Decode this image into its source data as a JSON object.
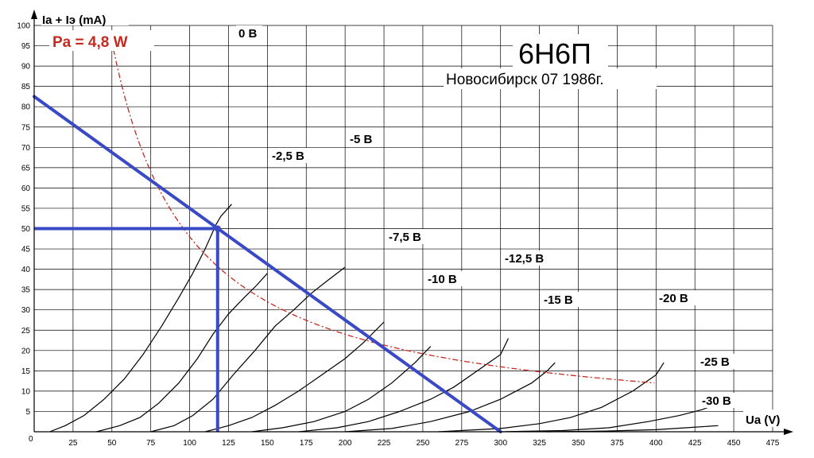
{
  "chart_data": {
    "type": "line",
    "title": "6Н6П",
    "subtitle": "Новосибирск 07 1986г.",
    "xlabel": "Ua (V)",
    "ylabel": "Ia + Iэ (mA)",
    "xlim": [
      0,
      475
    ],
    "ylim": [
      0,
      100
    ],
    "x_ticks": [
      25,
      50,
      75,
      100,
      125,
      150,
      175,
      200,
      225,
      250,
      275,
      300,
      325,
      350,
      375,
      400,
      425,
      450,
      475
    ],
    "y_ticks": [
      5,
      10,
      15,
      20,
      25,
      30,
      35,
      40,
      45,
      50,
      55,
      60,
      65,
      70,
      75,
      80,
      85,
      90,
      95,
      100
    ],
    "origin_label": "0",
    "grid": true,
    "series": [
      {
        "name": "0 В",
        "color": "#000000",
        "points": [
          [
            10,
            0
          ],
          [
            20,
            1.5
          ],
          [
            32,
            4
          ],
          [
            45,
            8
          ],
          [
            58,
            13
          ],
          [
            70,
            19
          ],
          [
            82,
            26
          ],
          [
            93,
            33
          ],
          [
            102,
            39
          ],
          [
            110,
            45
          ],
          [
            117,
            51
          ],
          [
            120,
            53
          ],
          [
            127,
            56
          ]
        ]
      },
      {
        "name": "-2,5 В",
        "color": "#000000",
        "points": [
          [
            40,
            0
          ],
          [
            55,
            1.5
          ],
          [
            68,
            3.5
          ],
          [
            80,
            7
          ],
          [
            93,
            12
          ],
          [
            105,
            18
          ],
          [
            115,
            24
          ],
          [
            125,
            29
          ],
          [
            135,
            33
          ],
          [
            143,
            36
          ],
          [
            150,
            39
          ]
        ]
      },
      {
        "name": "-5 В",
        "color": "#000000",
        "points": [
          [
            75,
            0
          ],
          [
            90,
            1.5
          ],
          [
            102,
            4
          ],
          [
            115,
            8
          ],
          [
            128,
            14
          ],
          [
            142,
            20
          ],
          [
            155,
            26
          ],
          [
            167,
            30
          ],
          [
            178,
            34
          ],
          [
            188,
            37
          ],
          [
            200,
            40.5
          ]
        ]
      },
      {
        "name": "-7,5 В",
        "color": "#000000",
        "points": [
          [
            110,
            0
          ],
          [
            125,
            1.5
          ],
          [
            140,
            3.5
          ],
          [
            155,
            6.5
          ],
          [
            170,
            10
          ],
          [
            185,
            14
          ],
          [
            200,
            18
          ],
          [
            212,
            22
          ],
          [
            225,
            27
          ]
        ]
      },
      {
        "name": "-10 В",
        "color": "#000000",
        "points": [
          [
            140,
            0
          ],
          [
            160,
            1
          ],
          [
            180,
            2.5
          ],
          [
            200,
            5
          ],
          [
            215,
            8
          ],
          [
            230,
            12
          ],
          [
            245,
            17
          ],
          [
            255,
            21
          ]
        ]
      },
      {
        "name": "-12,5 В",
        "color": "#000000",
        "points": [
          [
            170,
            0
          ],
          [
            195,
            1
          ],
          [
            215,
            2.5
          ],
          [
            235,
            5
          ],
          [
            255,
            8
          ],
          [
            270,
            11
          ],
          [
            285,
            15
          ],
          [
            300,
            19
          ],
          [
            305,
            23
          ]
        ]
      },
      {
        "name": "-15 В",
        "color": "#000000",
        "points": [
          [
            200,
            0
          ],
          [
            230,
            0.8
          ],
          [
            255,
            2.5
          ],
          [
            280,
            5
          ],
          [
            300,
            8
          ],
          [
            320,
            12
          ],
          [
            330,
            15
          ],
          [
            335,
            17
          ]
        ]
      },
      {
        "name": "-20 В",
        "color": "#000000",
        "points": [
          [
            260,
            0
          ],
          [
            300,
            0.8
          ],
          [
            325,
            2
          ],
          [
            345,
            3.5
          ],
          [
            365,
            6
          ],
          [
            385,
            10
          ],
          [
            400,
            14
          ],
          [
            405,
            17
          ]
        ]
      },
      {
        "name": "-25 В",
        "color": "#000000",
        "points": [
          [
            300,
            0
          ],
          [
            340,
            0.3
          ],
          [
            370,
            1
          ],
          [
            395,
            2.5
          ],
          [
            415,
            4
          ],
          [
            430,
            5.5
          ],
          [
            440,
            7
          ]
        ]
      },
      {
        "name": "-30 В",
        "color": "#000000",
        "points": [
          [
            330,
            0
          ],
          [
            370,
            0.2
          ],
          [
            400,
            0.5
          ],
          [
            420,
            1
          ],
          [
            440,
            1.5
          ]
        ]
      }
    ],
    "power_curve": {
      "name": "Pa = 4,8  W",
      "color": "#c8281e",
      "power_w": 4.8,
      "x_from": 51,
      "x_to": 400
    },
    "load_line": {
      "color": "#3a49c4",
      "points": [
        [
          0,
          82.5
        ],
        [
          300,
          0
        ]
      ]
    },
    "operating_point": {
      "color": "#3a49c4",
      "x": 118,
      "y": 50
    }
  }
}
